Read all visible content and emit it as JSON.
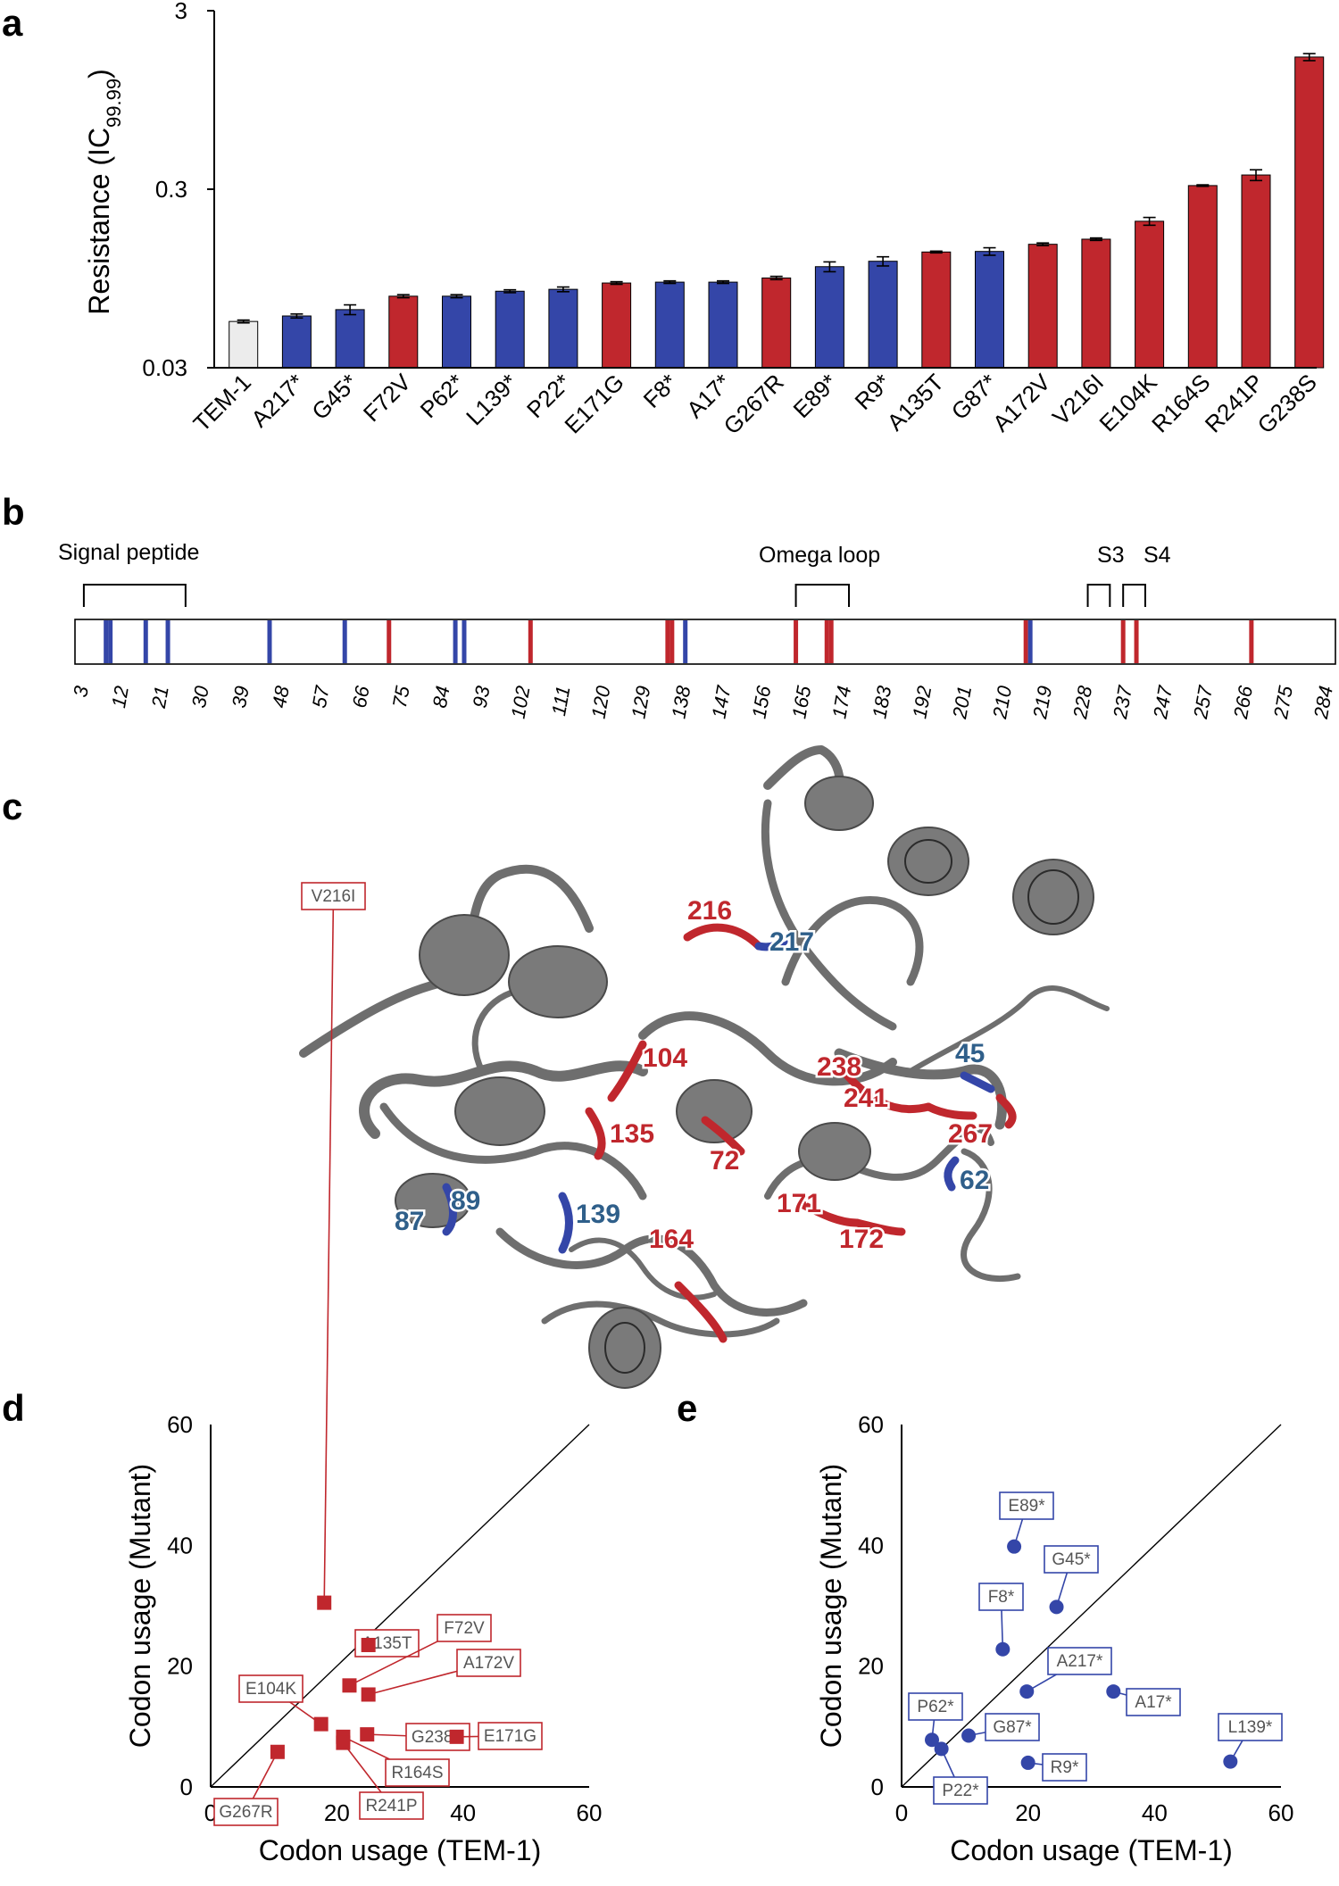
{
  "panels": {
    "a": "a",
    "b": "b",
    "c": "c",
    "d": "d",
    "e": "e"
  },
  "colors": {
    "gain": "#c0272d",
    "cost": "#3446a8",
    "wildtype": "#ececec",
    "protein": "#6e6e6e",
    "label_cost": "#2f5f8a"
  },
  "chart_data": [
    {
      "panel": "a",
      "type": "bar",
      "ylabel": "Resistance (IC",
      "ylabel_sub": "99.99",
      "ylabel_end": ")",
      "y_scale": "log",
      "ylim": [
        0.03,
        3
      ],
      "yticks": [
        {
          "value": 0.03,
          "label": "0.03"
        },
        {
          "value": 0.3,
          "label": "0.3"
        },
        {
          "value": 3,
          "label": "3"
        }
      ],
      "categories": [
        "TEM-1",
        "A217*",
        "G45*",
        "F72V",
        "P62*",
        "L139*",
        "P22*",
        "E171G",
        "F8*",
        "A17*",
        "G267R",
        "E89*",
        "R9*",
        "A135T",
        "G87*",
        "A172V",
        "V216I",
        "E104K",
        "R164S",
        "R241P",
        "G238S"
      ],
      "values": [
        0.0545,
        0.0585,
        0.0635,
        0.0755,
        0.0755,
        0.0805,
        0.0825,
        0.0895,
        0.0905,
        0.0905,
        0.0955,
        0.1105,
        0.1185,
        0.1335,
        0.1345,
        0.1475,
        0.1575,
        0.1985,
        0.3145,
        0.3605,
        1.6505
      ],
      "errors": [
        0.001,
        0.0015,
        0.004,
        0.0015,
        0.0015,
        0.0015,
        0.0025,
        0.0015,
        0.0015,
        0.0015,
        0.002,
        0.007,
        0.007,
        0.0015,
        0.0065,
        0.0025,
        0.0025,
        0.01,
        0.003,
        0.025,
        0.075
      ],
      "colors": [
        "#ececec",
        "#3446a8",
        "#3446a8",
        "#c0272d",
        "#3446a8",
        "#3446a8",
        "#3446a8",
        "#c0272d",
        "#3446a8",
        "#3446a8",
        "#c0272d",
        "#3446a8",
        "#3446a8",
        "#c0272d",
        "#3446a8",
        "#c0272d",
        "#c0272d",
        "#c0272d",
        "#c0272d",
        "#c0272d",
        "#c0272d"
      ]
    },
    {
      "panel": "b",
      "type": "sequence-map",
      "domains": [
        {
          "label": "Signal peptide",
          "start": 3,
          "end": 26
        },
        {
          "label": "Omega loop",
          "start": 164,
          "end": 176
        },
        {
          "label": "S3",
          "start": 230,
          "end": 235
        },
        {
          "label": "S4",
          "start": 238,
          "end": 243
        }
      ],
      "ticks": [
        3,
        12,
        21,
        30,
        39,
        48,
        57,
        66,
        75,
        84,
        93,
        102,
        111,
        120,
        129,
        138,
        147,
        156,
        165,
        174,
        183,
        192,
        201,
        210,
        219,
        228,
        237,
        247,
        257,
        266,
        275,
        284
      ],
      "marks": [
        {
          "pos": 8,
          "color": "#3446a8"
        },
        {
          "pos": 9,
          "color": "#3446a8"
        },
        {
          "pos": 17,
          "color": "#3446a8"
        },
        {
          "pos": 22,
          "color": "#3446a8"
        },
        {
          "pos": 45,
          "color": "#3446a8"
        },
        {
          "pos": 62,
          "color": "#3446a8"
        },
        {
          "pos": 72,
          "color": "#c0272d"
        },
        {
          "pos": 87,
          "color": "#3446a8"
        },
        {
          "pos": 89,
          "color": "#3446a8"
        },
        {
          "pos": 104,
          "color": "#c0272d"
        },
        {
          "pos": 135,
          "color": "#c0272d"
        },
        {
          "pos": 136,
          "color": "#c0272d"
        },
        {
          "pos": 139,
          "color": "#3446a8"
        },
        {
          "pos": 164,
          "color": "#c0272d"
        },
        {
          "pos": 171,
          "color": "#c0272d"
        },
        {
          "pos": 172,
          "color": "#c0272d"
        },
        {
          "pos": 216,
          "color": "#c0272d"
        },
        {
          "pos": 217,
          "color": "#3446a8"
        },
        {
          "pos": 238,
          "color": "#c0272d"
        },
        {
          "pos": 241,
          "color": "#c0272d"
        },
        {
          "pos": 267,
          "color": "#c0272d"
        }
      ]
    },
    {
      "panel": "d",
      "type": "scatter",
      "xlabel": "Codon usage (TEM-1)",
      "ylabel": "Codon usage (Mutant)",
      "xlim": [
        0,
        60
      ],
      "ylim": [
        0,
        60
      ],
      "ticks": [
        0,
        20,
        40,
        60
      ],
      "marker": "square",
      "color": "#c0272d",
      "points": [
        {
          "label": "V216I",
          "x": 18.0,
          "y": 30.5
        },
        {
          "label": "A135T",
          "x": 25.0,
          "y": 23.5
        },
        {
          "label": "F72V",
          "x": 22.0,
          "y": 16.8
        },
        {
          "label": "A172V",
          "x": 25.0,
          "y": 15.3
        },
        {
          "label": "E104K",
          "x": 17.5,
          "y": 10.4
        },
        {
          "label": "G238S",
          "x": 24.8,
          "y": 8.7
        },
        {
          "label": "E171G",
          "x": 39.0,
          "y": 8.3
        },
        {
          "label": "R164S",
          "x": 21.0,
          "y": 8.3
        },
        {
          "label": "R241P",
          "x": 21.0,
          "y": 7.3
        },
        {
          "label": "G267R",
          "x": 10.6,
          "y": 5.8
        }
      ]
    },
    {
      "panel": "e",
      "type": "scatter",
      "xlabel": "Codon usage (TEM-1)",
      "ylabel": "Codon usage (Mutant)",
      "xlim": [
        0,
        60
      ],
      "ylim": [
        0,
        60
      ],
      "ticks": [
        0,
        20,
        40,
        60
      ],
      "marker": "circle",
      "color": "#3446a8",
      "points": [
        {
          "label": "E89*",
          "x": 17.8,
          "y": 39.8
        },
        {
          "label": "G45*",
          "x": 24.5,
          "y": 29.8
        },
        {
          "label": "F8*",
          "x": 16.0,
          "y": 22.8
        },
        {
          "label": "A217*",
          "x": 19.8,
          "y": 15.8
        },
        {
          "label": "A17*",
          "x": 33.5,
          "y": 15.8
        },
        {
          "label": "G87*",
          "x": 10.6,
          "y": 8.5
        },
        {
          "label": "P62*",
          "x": 4.8,
          "y": 7.8
        },
        {
          "label": "P22*",
          "x": 6.3,
          "y": 6.3
        },
        {
          "label": "R9*",
          "x": 20.0,
          "y": 4.0
        },
        {
          "label": "L139*",
          "x": 52.0,
          "y": 4.2
        }
      ]
    }
  ],
  "structure": {
    "labels": [
      {
        "text": "216",
        "color": "#c0272d"
      },
      {
        "text": "217",
        "color": "#2f5f8a"
      },
      {
        "text": "104",
        "color": "#c0272d"
      },
      {
        "text": "238",
        "color": "#c0272d"
      },
      {
        "text": "45",
        "color": "#2f5f8a"
      },
      {
        "text": "241",
        "color": "#c0272d"
      },
      {
        "text": "135",
        "color": "#c0272d"
      },
      {
        "text": "72",
        "color": "#c0272d"
      },
      {
        "text": "267",
        "color": "#c0272d"
      },
      {
        "text": "87",
        "color": "#2f5f8a"
      },
      {
        "text": "89",
        "color": "#2f5f8a"
      },
      {
        "text": "139",
        "color": "#2f5f8a"
      },
      {
        "text": "62",
        "color": "#2f5f8a"
      },
      {
        "text": "171",
        "color": "#c0272d"
      },
      {
        "text": "172",
        "color": "#c0272d"
      },
      {
        "text": "164",
        "color": "#c0272d"
      }
    ]
  }
}
